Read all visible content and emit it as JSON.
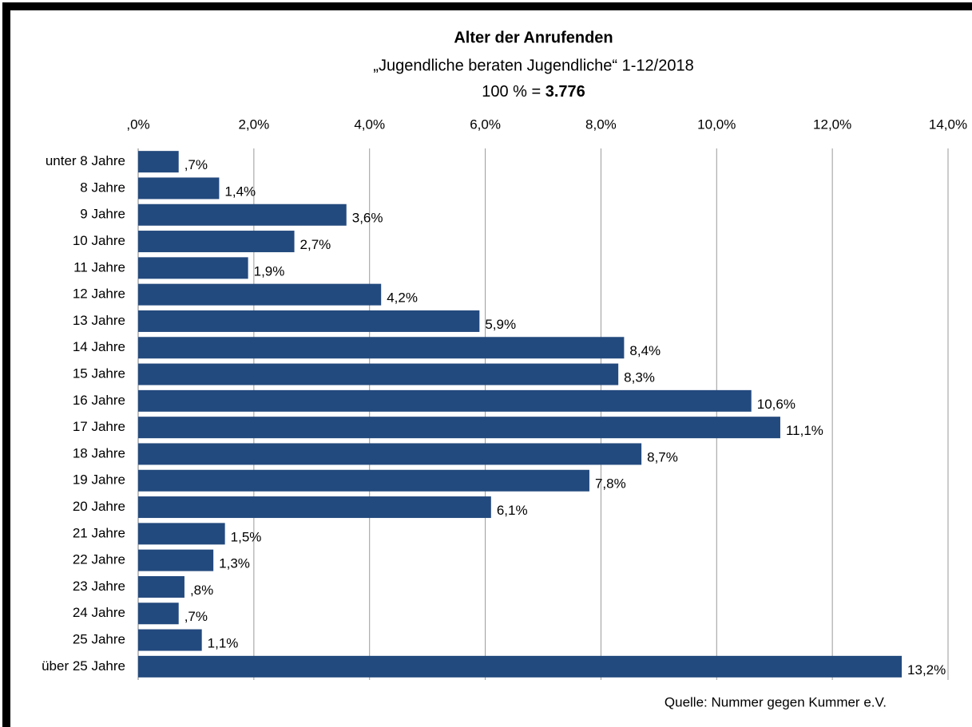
{
  "chart_data": {
    "type": "bar",
    "orientation": "horizontal",
    "title": "Alter der Anrufenden",
    "subtitle": "„Jugendliche beraten Jugendliche“ 1-12/2018",
    "total_prefix": "100 % =",
    "total": "3.776",
    "source": "Quelle: Nummer gegen Kummer e.V.",
    "categories": [
      "unter 8 Jahre",
      "8 Jahre",
      "9 Jahre",
      "10 Jahre",
      "11 Jahre",
      "12 Jahre",
      "13 Jahre",
      "14 Jahre",
      "15 Jahre",
      "16 Jahre",
      "17 Jahre",
      "18 Jahre",
      "19 Jahre",
      "20 Jahre",
      "21 Jahre",
      "22 Jahre",
      "23 Jahre",
      "24 Jahre",
      "25 Jahre",
      "über 25 Jahre"
    ],
    "values": [
      0.7,
      1.4,
      3.6,
      2.7,
      1.9,
      4.2,
      5.9,
      8.4,
      8.3,
      10.6,
      11.1,
      8.7,
      7.8,
      6.1,
      1.5,
      1.3,
      0.8,
      0.7,
      1.1,
      13.2
    ],
    "value_labels": [
      ",7%",
      "1,4%",
      "3,6%",
      "2,7%",
      "1,9%",
      "4,2%",
      "5,9%",
      "8,4%",
      "8,3%",
      "10,6%",
      "11,1%",
      "8,7%",
      "7,8%",
      "6,1%",
      "1,5%",
      "1,3%",
      ",8%",
      ",7%",
      "1,1%",
      "13,2%"
    ],
    "color": "#234a7e",
    "xlim": [
      0,
      14
    ],
    "xticks": [
      {
        "value": 0,
        "label": ",0%"
      },
      {
        "value": 2,
        "label": "2,0%"
      },
      {
        "value": 4,
        "label": "4,0%"
      },
      {
        "value": 6,
        "label": "6,0%"
      },
      {
        "value": 8,
        "label": "8,0%"
      },
      {
        "value": 10,
        "label": "10,0%"
      },
      {
        "value": 12,
        "label": "12,0%"
      },
      {
        "value": 14,
        "label": "14,0%"
      }
    ],
    "grid": true
  }
}
